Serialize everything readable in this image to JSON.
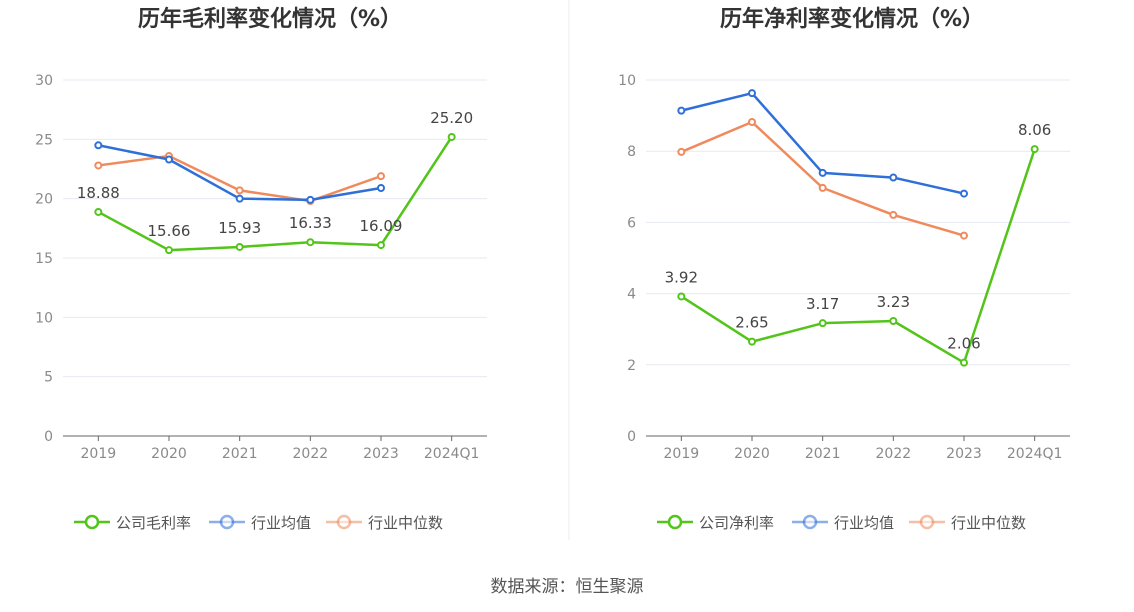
{
  "source": "数据来源：恒生聚源",
  "colors": {
    "company": "#52c41a",
    "avg": "#2f6fd8",
    "median": "#f08a5d",
    "grid": "#e6e9f0",
    "axis": "#666666"
  },
  "chart_data": [
    {
      "type": "line",
      "title": "历年毛利率变化情况（%）",
      "categories": [
        "2019",
        "2020",
        "2021",
        "2022",
        "2023",
        "2024Q1"
      ],
      "ylim": [
        0,
        30
      ],
      "yticks": [
        "0",
        "5",
        "10",
        "15",
        "20",
        "25",
        "30"
      ],
      "grid": true,
      "legend_position": "bottom",
      "series": [
        {
          "name": "公司毛利率",
          "key": "company",
          "values": [
            18.88,
            15.66,
            15.93,
            16.33,
            16.09,
            25.2
          ],
          "labels": [
            "18.88",
            "15.66",
            "15.93",
            "16.33",
            "16.09",
            "25.20"
          ]
        },
        {
          "name": "行业均值",
          "key": "avg",
          "values": [
            24.5,
            23.3,
            20.0,
            19.9,
            20.9,
            null
          ]
        },
        {
          "name": "行业中位数",
          "key": "median",
          "values": [
            22.8,
            23.6,
            20.7,
            19.8,
            21.9,
            null
          ]
        }
      ]
    },
    {
      "type": "line",
      "title": "历年净利率变化情况（%）",
      "categories": [
        "2019",
        "2020",
        "2021",
        "2022",
        "2023",
        "2024Q1"
      ],
      "ylim": [
        0,
        10
      ],
      "yticks": [
        "0",
        "2",
        "4",
        "6",
        "8",
        "10"
      ],
      "grid": true,
      "legend_position": "bottom",
      "series": [
        {
          "name": "公司净利率",
          "key": "company",
          "values": [
            3.92,
            2.65,
            3.17,
            3.23,
            2.06,
            8.06
          ],
          "labels": [
            "3.92",
            "2.65",
            "3.17",
            "3.23",
            "2.06",
            "8.06"
          ]
        },
        {
          "name": "行业均值",
          "key": "avg",
          "values": [
            9.14,
            9.63,
            7.39,
            7.26,
            6.81,
            null
          ]
        },
        {
          "name": "行业中位数",
          "key": "median",
          "values": [
            7.98,
            8.82,
            6.97,
            6.21,
            5.63,
            null
          ]
        }
      ]
    }
  ]
}
